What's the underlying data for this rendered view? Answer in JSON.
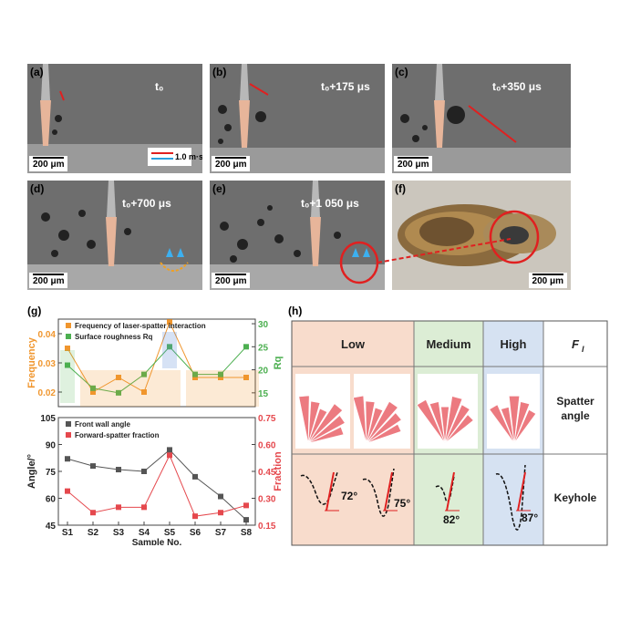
{
  "panels": [
    {
      "label": "(a)",
      "time": "t₀"
    },
    {
      "label": "(b)",
      "time": "t₀+175 μs"
    },
    {
      "label": "(c)",
      "time": "t₀+350 μs"
    },
    {
      "label": "(d)",
      "time": "t₀+700 μs"
    },
    {
      "label": "(e)",
      "time": "t₀+1 050 μs"
    },
    {
      "label": "(f)",
      "time": ""
    }
  ],
  "scale_bar": "200 μm",
  "velocity_legend": "1.0 m·s⁻¹",
  "colors": {
    "freq": "#f0962e",
    "rough": "#4caf50",
    "angle": "#555555",
    "fraction": "#e5484d",
    "low": "#f8dccc",
    "medium": "#dcedd5",
    "high": "#d6e2f2",
    "petal": "#ec7a80"
  },
  "chart_data": [
    {
      "type": "line",
      "panel": "(g)",
      "categories": [
        "S1",
        "S2",
        "S3",
        "S4",
        "S5",
        "S6",
        "S7",
        "S8"
      ],
      "series": [
        {
          "name": "Frequency of laser-spatter interaction",
          "axis": "left",
          "values": [
            0.035,
            0.02,
            0.025,
            0.02,
            0.044,
            0.025,
            0.025,
            0.025
          ]
        },
        {
          "name": "Surface roughness R_q",
          "axis": "right",
          "values": [
            21,
            16,
            15,
            19,
            25,
            19,
            19,
            25
          ]
        }
      ],
      "ylabel": "Frequency",
      "ylim": [
        0.015,
        0.045
      ],
      "yticks": [
        "0.02",
        "0.03",
        "0.04"
      ],
      "y2label": "Rq",
      "y2lim": [
        12,
        31
      ],
      "y2ticks": [
        "15",
        "20",
        "25",
        "30"
      ]
    },
    {
      "type": "line",
      "panel": "(g)",
      "categories": [
        "S1",
        "S2",
        "S3",
        "S4",
        "S5",
        "S6",
        "S7",
        "S8"
      ],
      "series": [
        {
          "name": "Front wall angle",
          "axis": "left",
          "values": [
            82,
            78,
            76,
            75,
            87,
            72,
            61,
            48
          ]
        },
        {
          "name": "Forward-spatter fraction",
          "axis": "right",
          "values": [
            0.34,
            0.22,
            0.25,
            0.25,
            0.54,
            0.2,
            0.22,
            0.26
          ]
        }
      ],
      "xlabel": "Sample No.",
      "ylabel": "Angle/°",
      "ylim": [
        45,
        105
      ],
      "yticks": [
        "45",
        "60",
        "75",
        "90",
        "105"
      ],
      "y2label": "Fraction",
      "y2lim": [
        0.15,
        0.75
      ],
      "y2ticks": [
        "0.15",
        "0.30",
        "0.45",
        "0.60",
        "0.75"
      ]
    }
  ],
  "table_h": {
    "label": "(h)",
    "fl_header": "F",
    "fl_sub": "l",
    "columns": [
      "Low",
      "Medium",
      "High"
    ],
    "rows": [
      "Spatter angle",
      "Keyhole"
    ],
    "row_spatter_line1": "Spatter",
    "row_spatter_line2": "angle",
    "keyhole_angles": [
      "72°",
      "75°",
      "82°",
      "87°"
    ]
  }
}
